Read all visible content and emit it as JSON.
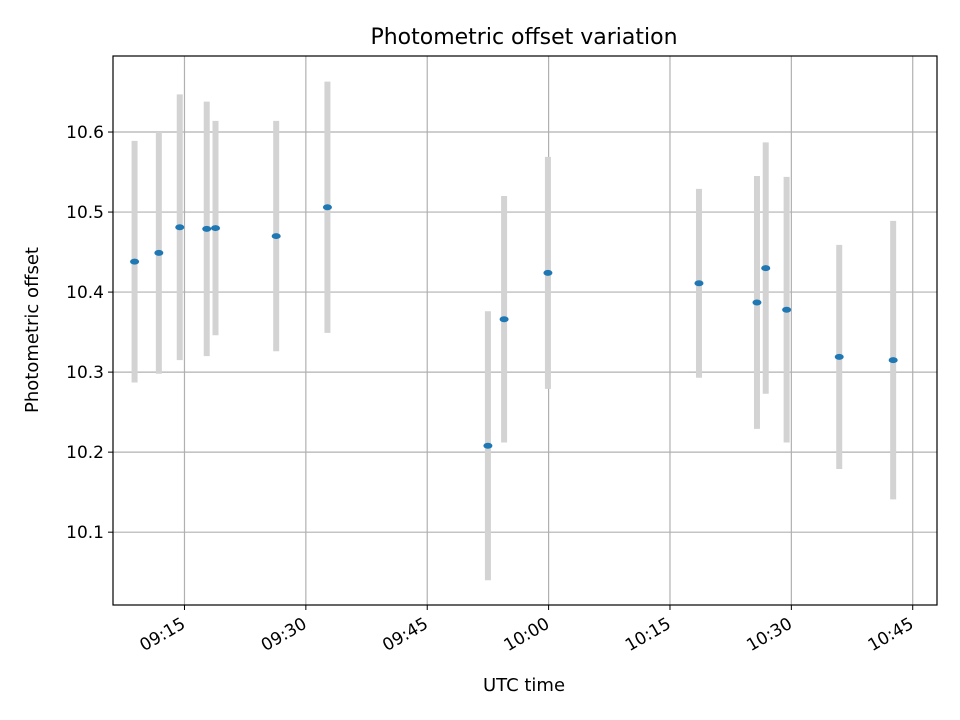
{
  "chart_data": {
    "type": "scatter",
    "title": "Photometric offset variation",
    "xlabel": "UTC time",
    "ylabel": "Photometric offset",
    "x_ticks": [
      "09:15",
      "09:30",
      "09:45",
      "10:00",
      "10:15",
      "10:30",
      "10:45"
    ],
    "y_ticks": [
      10.1,
      10.2,
      10.3,
      10.4,
      10.5,
      10.6
    ],
    "xlim": [
      "09:06:10",
      "10:48:00"
    ],
    "ylim": [
      10.009,
      10.695
    ],
    "grid": true,
    "colors": {
      "marker": "#1f77b4",
      "errorbar": "#d3d3d3"
    },
    "points": [
      {
        "x": "09:08:50",
        "y": 10.438,
        "y_err": 0.151
      },
      {
        "x": "09:11:50",
        "y": 10.449,
        "y_err": 0.151
      },
      {
        "x": "09:14:25",
        "y": 10.481,
        "y_err": 0.166
      },
      {
        "x": "09:17:45",
        "y": 10.479,
        "y_err": 0.159
      },
      {
        "x": "09:18:50",
        "y": 10.48,
        "y_err": 0.134
      },
      {
        "x": "09:26:20",
        "y": 10.47,
        "y_err": 0.144
      },
      {
        "x": "09:32:40",
        "y": 10.506,
        "y_err": 0.157
      },
      {
        "x": "09:52:30",
        "y": 10.208,
        "y_err": 0.168
      },
      {
        "x": "09:54:30",
        "y": 10.366,
        "y_err": 0.154
      },
      {
        "x": "09:59:55",
        "y": 10.424,
        "y_err": 0.145
      },
      {
        "x": "10:18:35",
        "y": 10.411,
        "y_err": 0.118
      },
      {
        "x": "10:25:45",
        "y": 10.387,
        "y_err": 0.158
      },
      {
        "x": "10:26:50",
        "y": 10.43,
        "y_err": 0.157
      },
      {
        "x": "10:29:25",
        "y": 10.378,
        "y_err": 0.166
      },
      {
        "x": "10:35:55",
        "y": 10.319,
        "y_err": 0.14
      },
      {
        "x": "10:42:35",
        "y": 10.315,
        "y_err": 0.174
      }
    ]
  }
}
